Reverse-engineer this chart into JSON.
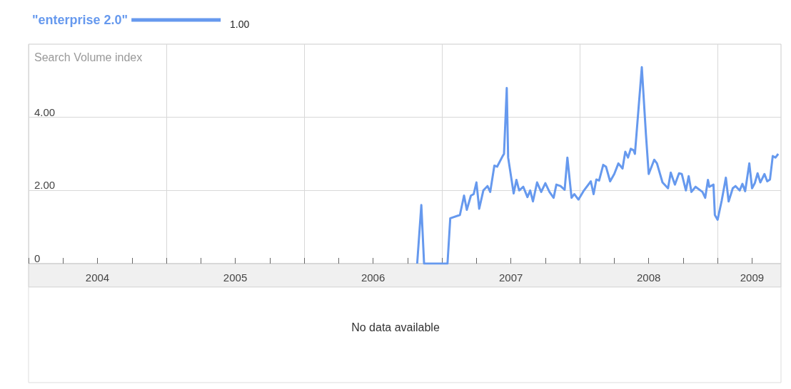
{
  "chart_data": {
    "type": "line",
    "ylabel": "Search Volume index",
    "annotations": [
      "1.00",
      "No data available"
    ],
    "legend": "top left",
    "grid": true,
    "marker": "none",
    "xlim": [
      2004,
      2009.46
    ],
    "ylim": [
      0,
      6
    ],
    "yticks": [
      0,
      {
        "value": 2,
        "label": "2.00"
      },
      {
        "value": 4,
        "label": "4.00"
      }
    ],
    "xticks": [
      {
        "value": 2004,
        "label": null
      },
      {
        "value": 2004.25,
        "label": null
      },
      {
        "value": 2004.5,
        "label": "2004"
      },
      {
        "value": 2004.75,
        "label": null
      },
      {
        "value": 2005,
        "label": null
      },
      {
        "value": 2005.25,
        "label": null
      },
      {
        "value": 2005.5,
        "label": "2005"
      },
      {
        "value": 2005.75,
        "label": null
      },
      {
        "value": 2006,
        "label": null
      },
      {
        "value": 2006.25,
        "label": null
      },
      {
        "value": 2006.5,
        "label": "2006"
      },
      {
        "value": 2006.75,
        "label": null
      },
      {
        "value": 2007,
        "label": null
      },
      {
        "value": 2007.25,
        "label": null
      },
      {
        "value": 2007.5,
        "label": "2007"
      },
      {
        "value": 2007.75,
        "label": null
      },
      {
        "value": 2008,
        "label": null
      },
      {
        "value": 2008.25,
        "label": null
      },
      {
        "value": 2008.5,
        "label": "2008"
      },
      {
        "value": 2008.75,
        "label": null
      },
      {
        "value": 2009,
        "label": null
      },
      {
        "value": 2009.25,
        "label": "2009"
      }
    ],
    "series": [
      {
        "name": "\"enterprise 2.0\"",
        "color": "#6699ee",
        "x": [
          2006.82,
          2006.85,
          2006.87,
          2007.04,
          2007.06,
          2007.13,
          2007.16,
          2007.18,
          2007.21,
          2007.23,
          2007.25,
          2007.27,
          2007.3,
          2007.33,
          2007.35,
          2007.38,
          2007.4,
          2007.44,
          2007.45,
          2007.47,
          2007.48,
          2007.52,
          2007.54,
          2007.56,
          2007.59,
          2007.62,
          2007.64,
          2007.66,
          2007.69,
          2007.72,
          2007.75,
          2007.78,
          2007.81,
          2007.83,
          2007.86,
          2007.89,
          2007.91,
          2007.94,
          2007.96,
          2007.99,
          2008.03,
          2008.08,
          2008.1,
          2008.12,
          2008.14,
          2008.17,
          2008.19,
          2008.22,
          2008.25,
          2008.28,
          2008.31,
          2008.33,
          2008.35,
          2008.37,
          2008.39,
          2008.4,
          2008.45,
          2008.48,
          2008.5,
          2008.54,
          2008.56,
          2008.6,
          2008.64,
          2008.66,
          2008.69,
          2008.72,
          2008.74,
          2008.77,
          2008.79,
          2008.81,
          2008.84,
          2008.89,
          2008.91,
          2008.93,
          2008.94,
          2008.97,
          2008.98,
          2009.0,
          2009.03,
          2009.06,
          2009.08,
          2009.11,
          2009.13,
          2009.16,
          2009.18,
          2009.2,
          2009.23,
          2009.25,
          2009.27,
          2009.29,
          2009.31,
          2009.34,
          2009.36,
          2009.38,
          2009.4,
          2009.42,
          2009.44
        ],
        "values": [
          0,
          1.6,
          0,
          0,
          1.24,
          1.33,
          1.86,
          1.47,
          1.86,
          1.9,
          2.22,
          1.5,
          2.0,
          2.12,
          1.96,
          2.68,
          2.65,
          2.94,
          3.0,
          4.8,
          2.9,
          1.92,
          2.29,
          2.0,
          2.1,
          1.82,
          2.0,
          1.7,
          2.22,
          1.96,
          2.2,
          1.96,
          1.8,
          2.16,
          2.12,
          2.02,
          2.9,
          1.8,
          1.9,
          1.75,
          2.0,
          2.25,
          1.9,
          2.3,
          2.27,
          2.7,
          2.65,
          2.25,
          2.45,
          2.74,
          2.6,
          3.06,
          2.9,
          3.14,
          3.1,
          3.0,
          5.37,
          3.53,
          2.45,
          2.84,
          2.74,
          2.22,
          2.06,
          2.49,
          2.16,
          2.47,
          2.45,
          2.0,
          2.39,
          1.96,
          2.1,
          1.96,
          1.8,
          2.29,
          2.1,
          2.16,
          1.33,
          1.2,
          1.73,
          2.35,
          1.7,
          2.06,
          2.12,
          2.0,
          2.18,
          1.98,
          2.74,
          2.06,
          2.2,
          2.47,
          2.22,
          2.45,
          2.25,
          2.3,
          2.94,
          2.9,
          3.0
        ]
      }
    ]
  }
}
